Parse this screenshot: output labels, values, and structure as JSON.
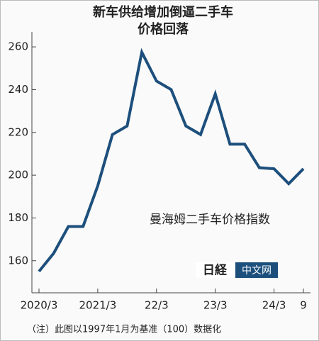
{
  "chart_data": {
    "type": "line",
    "title": "新车供给增加倒逼二手车",
    "subtitle": "价格回落",
    "categories": [
      "2020/3",
      null,
      null,
      null,
      "2021/3",
      null,
      null,
      null,
      "22/3",
      null,
      null,
      null,
      "23/3",
      null,
      null,
      null,
      "24/3",
      null,
      "9"
    ],
    "series": [
      {
        "name": "曼海姆二手车价格指数",
        "color": "#1d4f7c",
        "values": [
          155,
          163.5,
          176,
          176,
          195,
          219,
          223,
          257.5,
          244,
          240,
          223,
          219,
          238,
          214.5,
          214.5,
          203.5,
          203,
          196,
          203
        ]
      }
    ],
    "ylim": [
      145,
      267
    ],
    "yticks": [
      160,
      180,
      200,
      220,
      240,
      260
    ],
    "note": "（注）此图以1997年1月为基准（100）数据化",
    "logo_text": "日経",
    "logo_label": "中文网"
  }
}
